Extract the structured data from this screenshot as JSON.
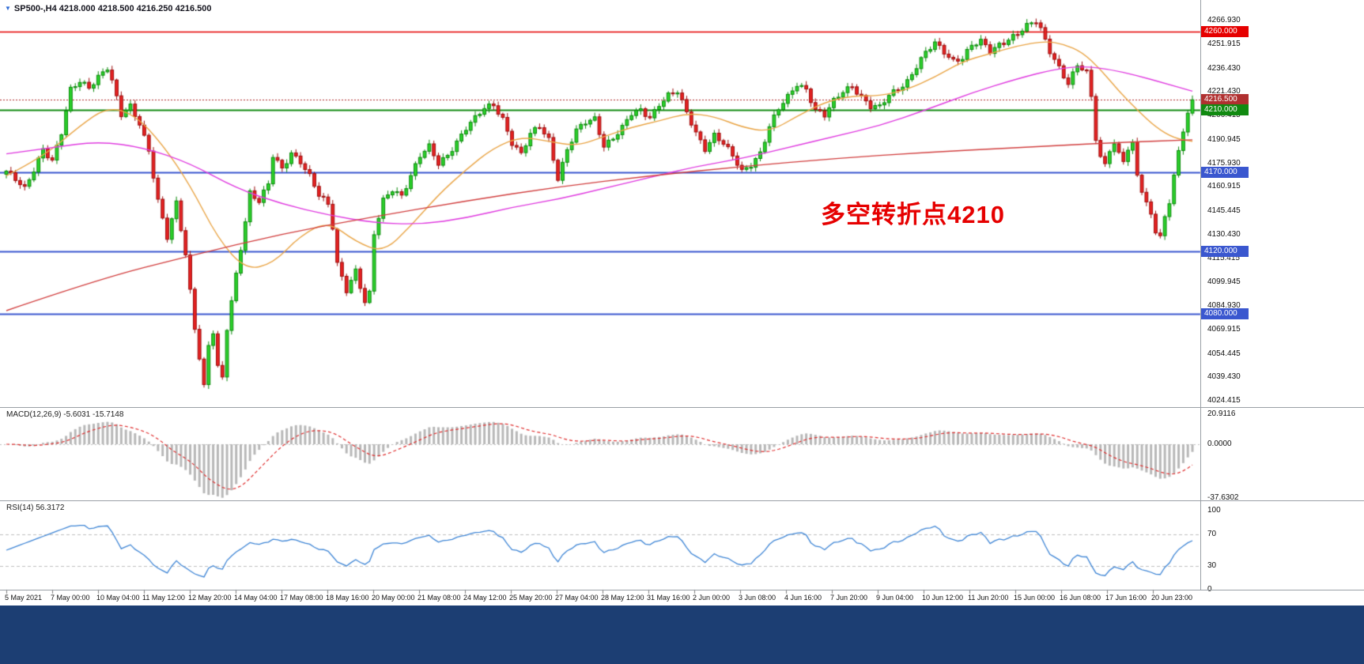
{
  "titlebar": {
    "symbol_quote": "SP500-,H4 4218.000 4218.500 4216.250 4216.500"
  },
  "annotation": {
    "text": "多空转折点4210",
    "color": "#e60000"
  },
  "colors": {
    "up_fill": "#2bd12b",
    "up_border": "#0c8a0c",
    "down_fill": "#e62222",
    "down_border": "#9c0f0f",
    "ma_fast": "#eaa648",
    "ma_mid": "#e03ce0",
    "ma_slow": "#d24040",
    "macd_hist": "#b8b8b8",
    "macd_signal": "#e03030",
    "rsi_line": "#3f86d6",
    "level_red": "#e60000",
    "level_green": "#118a11",
    "level_blue": "#3a57cf",
    "bid_line": "#b03030",
    "bid_badge": "#b03030",
    "grid": "#c0c0c0",
    "footer": "#1c3e73"
  },
  "chart_data": {
    "type": "candlestick",
    "symbol": "SP500-",
    "timeframe": "H4",
    "current_bar": {
      "open": 4218.0,
      "high": 4218.5,
      "low": 4216.25,
      "close": 4216.5
    },
    "candle_count": 259,
    "y_axis": {
      "min": 4024.415,
      "max": 4266.93,
      "ticks": [
        "4266.930",
        "4251.915",
        "4236.430",
        "4221.430",
        "4206.415",
        "4190.945",
        "4175.930",
        "4160.915",
        "4145.445",
        "4130.430",
        "4115.415",
        "4099.945",
        "4084.930",
        "4069.915",
        "4054.445",
        "4039.430",
        "4024.415"
      ],
      "badges": [
        {
          "label": "4260.000",
          "price": 4260.0,
          "color": "level_red"
        },
        {
          "label": "4216.500",
          "price": 4216.5,
          "color": "bid_badge"
        },
        {
          "label": "4210.000",
          "price": 4210.0,
          "color": "level_green"
        },
        {
          "label": "4170.000",
          "price": 4170.0,
          "color": "level_blue"
        },
        {
          "label": "4120.000",
          "price": 4120.0,
          "color": "level_blue"
        },
        {
          "label": "4080.000",
          "price": 4080.0,
          "color": "level_blue"
        }
      ]
    },
    "x_axis": {
      "labels": [
        "5 May 2021",
        "7 May 00:00",
        "10 May 04:00",
        "11 May 12:00",
        "12 May 20:00",
        "14 May 04:00",
        "17 May 08:00",
        "18 May 16:00",
        "20 May 00:00",
        "21 May 08:00",
        "24 May 12:00",
        "25 May 20:00",
        "27 May 04:00",
        "28 May 12:00",
        "31 May 16:00",
        "2 Jun 00:00",
        "3 Jun 08:00",
        "4 Jun 16:00",
        "7 Jun 20:00",
        "9 Jun 04:00",
        "10 Jun 12:00",
        "11 Jun 20:00",
        "15 Jun 00:00",
        "16 Jun 08:00",
        "17 Jun 16:00",
        "20 Jun 23:00"
      ]
    },
    "levels": [
      {
        "price": 4260.0,
        "color": "level_red",
        "width": 1.4,
        "dash": []
      },
      {
        "price": 4216.5,
        "color": "bid_line",
        "width": 1,
        "dash": [
          2,
          2
        ]
      },
      {
        "price": 4210.0,
        "color": "level_green",
        "width": 1.8,
        "dash": []
      },
      {
        "price": 4170.0,
        "color": "level_blue",
        "width": 1.8,
        "dash": []
      },
      {
        "price": 4120.0,
        "color": "level_blue",
        "width": 1.8,
        "dash": []
      },
      {
        "price": 4080.0,
        "color": "level_blue",
        "width": 1.8,
        "dash": []
      }
    ],
    "close_path_anchors": [
      [
        0,
        4171
      ],
      [
        2,
        4165
      ],
      [
        4,
        4159
      ],
      [
        6,
        4172
      ],
      [
        8,
        4186
      ],
      [
        10,
        4178
      ],
      [
        12,
        4195
      ],
      [
        14,
        4222
      ],
      [
        16,
        4228
      ],
      [
        18,
        4225
      ],
      [
        20,
        4232
      ],
      [
        22,
        4237
      ],
      [
        23,
        4228
      ],
      [
        25,
        4206
      ],
      [
        27,
        4212
      ],
      [
        29,
        4202
      ],
      [
        31,
        4185
      ],
      [
        33,
        4152
      ],
      [
        35,
        4128
      ],
      [
        37,
        4150
      ],
      [
        39,
        4118
      ],
      [
        41,
        4072
      ],
      [
        43,
        4034
      ],
      [
        44,
        4060
      ],
      [
        45,
        4068
      ],
      [
        46,
        4045
      ],
      [
        47,
        4038
      ],
      [
        48,
        4070
      ],
      [
        50,
        4105
      ],
      [
        52,
        4140
      ],
      [
        53,
        4158
      ],
      [
        55,
        4152
      ],
      [
        57,
        4162
      ],
      [
        58,
        4180
      ],
      [
        60,
        4172
      ],
      [
        62,
        4183
      ],
      [
        64,
        4178
      ],
      [
        66,
        4168
      ],
      [
        68,
        4155
      ],
      [
        70,
        4149
      ],
      [
        71,
        4135
      ],
      [
        72,
        4112
      ],
      [
        74,
        4096
      ],
      [
        76,
        4108
      ],
      [
        78,
        4087
      ],
      [
        79,
        4092
      ],
      [
        80,
        4130
      ],
      [
        82,
        4152
      ],
      [
        84,
        4160
      ],
      [
        86,
        4156
      ],
      [
        88,
        4168
      ],
      [
        90,
        4180
      ],
      [
        92,
        4186
      ],
      [
        94,
        4176
      ],
      [
        96,
        4182
      ],
      [
        98,
        4190
      ],
      [
        100,
        4198
      ],
      [
        102,
        4204
      ],
      [
        104,
        4211
      ],
      [
        106,
        4214
      ],
      [
        108,
        4205
      ],
      [
        110,
        4189
      ],
      [
        112,
        4181
      ],
      [
        114,
        4194
      ],
      [
        116,
        4200
      ],
      [
        118,
        4192
      ],
      [
        120,
        4167
      ],
      [
        122,
        4184
      ],
      [
        124,
        4196
      ],
      [
        126,
        4202
      ],
      [
        128,
        4205
      ],
      [
        130,
        4188
      ],
      [
        132,
        4192
      ],
      [
        134,
        4198
      ],
      [
        136,
        4207
      ],
      [
        138,
        4210
      ],
      [
        140,
        4206
      ],
      [
        142,
        4214
      ],
      [
        144,
        4219
      ],
      [
        146,
        4221
      ],
      [
        148,
        4208
      ],
      [
        150,
        4196
      ],
      [
        152,
        4186
      ],
      [
        154,
        4194
      ],
      [
        156,
        4188
      ],
      [
        158,
        4180
      ],
      [
        160,
        4171
      ],
      [
        162,
        4176
      ],
      [
        164,
        4183
      ],
      [
        166,
        4199
      ],
      [
        168,
        4210
      ],
      [
        170,
        4218
      ],
      [
        172,
        4227
      ],
      [
        174,
        4224
      ],
      [
        176,
        4210
      ],
      [
        178,
        4206
      ],
      [
        180,
        4215
      ],
      [
        182,
        4222
      ],
      [
        184,
        4226
      ],
      [
        186,
        4219
      ],
      [
        188,
        4212
      ],
      [
        190,
        4211
      ],
      [
        192,
        4219
      ],
      [
        194,
        4224
      ],
      [
        196,
        4229
      ],
      [
        198,
        4238
      ],
      [
        200,
        4246
      ],
      [
        202,
        4252
      ],
      [
        204,
        4247
      ],
      [
        206,
        4242
      ],
      [
        208,
        4244
      ],
      [
        210,
        4251
      ],
      [
        212,
        4253
      ],
      [
        214,
        4247
      ],
      [
        216,
        4252
      ],
      [
        218,
        4256
      ],
      [
        220,
        4259
      ],
      [
        222,
        4263
      ],
      [
        224,
        4266
      ],
      [
        225,
        4261
      ],
      [
        227,
        4248
      ],
      [
        229,
        4238
      ],
      [
        231,
        4227
      ],
      [
        233,
        4238
      ],
      [
        235,
        4233
      ],
      [
        236,
        4218
      ],
      [
        237,
        4192
      ],
      [
        238,
        4180
      ],
      [
        239,
        4176
      ],
      [
        240,
        4186
      ],
      [
        241,
        4189
      ],
      [
        242,
        4182
      ],
      [
        243,
        4178
      ],
      [
        244,
        4184
      ],
      [
        245,
        4187
      ],
      [
        246,
        4168
      ],
      [
        247,
        4158
      ],
      [
        248,
        4150
      ],
      [
        249,
        4144
      ],
      [
        250,
        4134
      ],
      [
        251,
        4130
      ],
      [
        252,
        4142
      ],
      [
        253,
        4152
      ],
      [
        254,
        4168
      ],
      [
        255,
        4182
      ],
      [
        256,
        4196
      ],
      [
        257,
        4208
      ],
      [
        258,
        4216.5
      ]
    ],
    "moving_averages": [
      {
        "name": "ma-fast",
        "color": "ma_fast",
        "points": [
          [
            0,
            4168
          ],
          [
            8,
            4180
          ],
          [
            16,
            4200
          ],
          [
            22,
            4212
          ],
          [
            28,
            4207
          ],
          [
            34,
            4188
          ],
          [
            40,
            4162
          ],
          [
            46,
            4128
          ],
          [
            52,
            4108
          ],
          [
            58,
            4112
          ],
          [
            64,
            4130
          ],
          [
            70,
            4139
          ],
          [
            76,
            4126
          ],
          [
            82,
            4119
          ],
          [
            88,
            4136
          ],
          [
            94,
            4156
          ],
          [
            100,
            4172
          ],
          [
            106,
            4186
          ],
          [
            112,
            4193
          ],
          [
            118,
            4190
          ],
          [
            124,
            4187
          ],
          [
            130,
            4193
          ],
          [
            136,
            4199
          ],
          [
            142,
            4203
          ],
          [
            148,
            4208
          ],
          [
            154,
            4206
          ],
          [
            160,
            4199
          ],
          [
            166,
            4196
          ],
          [
            172,
            4206
          ],
          [
            178,
            4215
          ],
          [
            184,
            4219
          ],
          [
            190,
            4219
          ],
          [
            196,
            4223
          ],
          [
            202,
            4231
          ],
          [
            208,
            4241
          ],
          [
            214,
            4246
          ],
          [
            220,
            4251
          ],
          [
            226,
            4254
          ],
          [
            230,
            4252
          ],
          [
            234,
            4247
          ],
          [
            238,
            4236
          ],
          [
            242,
            4222
          ],
          [
            246,
            4210
          ],
          [
            250,
            4199
          ],
          [
            254,
            4192
          ],
          [
            258,
            4190
          ]
        ]
      },
      {
        "name": "ma-mid",
        "color": "ma_mid",
        "points": [
          [
            0,
            4182
          ],
          [
            10,
            4186
          ],
          [
            20,
            4190
          ],
          [
            30,
            4186
          ],
          [
            40,
            4176
          ],
          [
            50,
            4160
          ],
          [
            60,
            4150
          ],
          [
            70,
            4143
          ],
          [
            80,
            4138
          ],
          [
            90,
            4137
          ],
          [
            100,
            4141
          ],
          [
            110,
            4148
          ],
          [
            120,
            4153
          ],
          [
            130,
            4160
          ],
          [
            140,
            4167
          ],
          [
            150,
            4174
          ],
          [
            160,
            4179
          ],
          [
            170,
            4186
          ],
          [
            180,
            4193
          ],
          [
            190,
            4200
          ],
          [
            200,
            4210
          ],
          [
            210,
            4221
          ],
          [
            220,
            4230
          ],
          [
            228,
            4236
          ],
          [
            234,
            4238
          ],
          [
            240,
            4236
          ],
          [
            246,
            4232
          ],
          [
            252,
            4227
          ],
          [
            258,
            4222
          ]
        ]
      },
      {
        "name": "ma-slow",
        "color": "ma_slow",
        "points": [
          [
            0,
            4082
          ],
          [
            20,
            4102
          ],
          [
            40,
            4117
          ],
          [
            60,
            4131
          ],
          [
            80,
            4142
          ],
          [
            100,
            4152
          ],
          [
            120,
            4161
          ],
          [
            140,
            4168
          ],
          [
            160,
            4174
          ],
          [
            180,
            4179
          ],
          [
            200,
            4183
          ],
          [
            220,
            4186
          ],
          [
            240,
            4189
          ],
          [
            258,
            4191
          ]
        ]
      }
    ],
    "macd": {
      "label": "MACD(12,26,9) -5.6031 -15.7148",
      "fast": 12,
      "slow": 26,
      "signal": 9,
      "value": -5.6031,
      "signal_value": -15.7148,
      "axis_ticks": [
        {
          "v": 20.9116,
          "label": "20.9116"
        },
        {
          "v": 0,
          "label": "0.0000"
        },
        {
          "v": -37.6302,
          "label": "-37.6302"
        }
      ]
    },
    "rsi": {
      "label": "RSI(14) 56.3172",
      "period": 14,
      "value": 56.3172,
      "levels": [
        70,
        30
      ],
      "axis_ticks": [
        {
          "v": 100,
          "label": "100"
        },
        {
          "v": 70,
          "label": "70"
        },
        {
          "v": 30,
          "label": "30"
        },
        {
          "v": 0,
          "label": "0"
        }
      ]
    }
  }
}
